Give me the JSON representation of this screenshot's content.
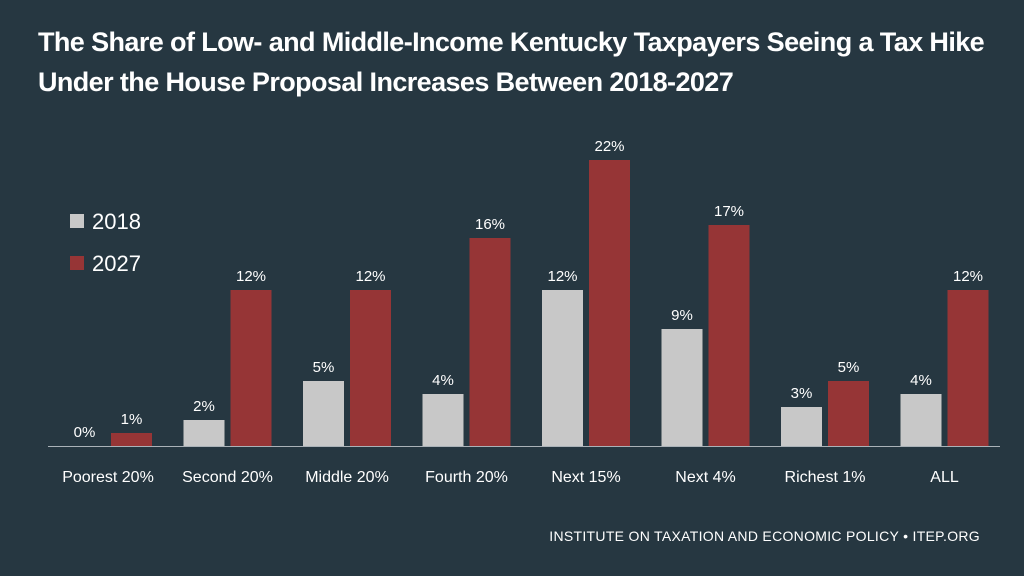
{
  "header": {
    "title_line1": "The Share of Low- and Middle-Income Kentucky Taxpayers Seeing a Tax Hike",
    "title_line2": "Under the House Proposal Increases Between 2018-2027"
  },
  "footer": {
    "source": "INSTITUTE ON TAXATION AND ECONOMIC POLICY • ITEP.ORG"
  },
  "colors": {
    "background": "#263741",
    "series_2018": "#c8c8c8",
    "series_2027": "#963536",
    "text": "#ffffff",
    "axis": "#aab2b8"
  },
  "chart_data": {
    "type": "bar",
    "title": "The Share of Low- and Middle-Income Kentucky Taxpayers Seeing a Tax Hike Under the House Proposal Increases Between 2018-2027",
    "categories": [
      "Poorest 20%",
      "Second 20%",
      "Middle 20%",
      "Fourth 20%",
      "Next 15%",
      "Next 4%",
      "Richest 1%",
      "ALL"
    ],
    "series": [
      {
        "name": "2018",
        "values": [
          0,
          2,
          5,
          4,
          12,
          9,
          3,
          4
        ],
        "labels": [
          "0%",
          "2%",
          "5%",
          "4%",
          "12%",
          "9%",
          "3%",
          "4%"
        ]
      },
      {
        "name": "2027",
        "values": [
          1,
          12,
          12,
          16,
          22,
          17,
          5,
          12
        ],
        "labels": [
          "1%",
          "12%",
          "12%",
          "16%",
          "22%",
          "17%",
          "5%",
          "12%"
        ]
      }
    ],
    "ylim": [
      0,
      25
    ],
    "xlabel": "",
    "ylabel": "",
    "grid": false,
    "legend": "left"
  }
}
